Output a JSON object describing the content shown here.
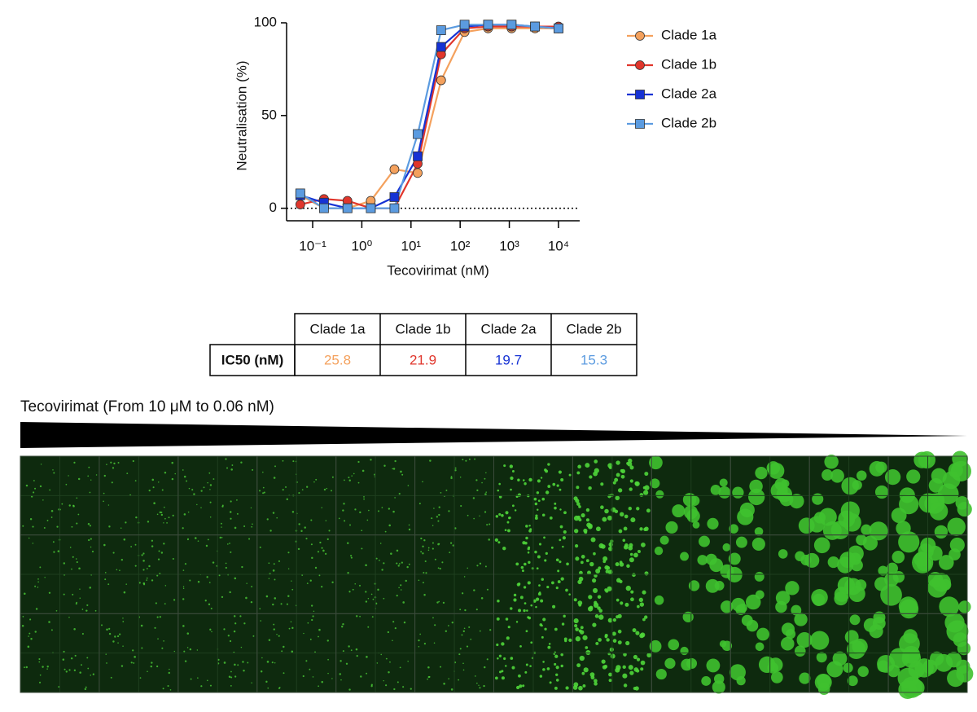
{
  "chart_data": {
    "type": "line",
    "x_label": "Tecovirimat (nM)",
    "y_label": "Neutralisation (%)",
    "xscale": "log",
    "zero_line": true,
    "x": [
      0.056,
      0.17,
      0.51,
      1.52,
      4.6,
      13.7,
      41,
      123,
      370,
      1111,
      3333,
      10000
    ],
    "xlim": [
      0.04,
      27000
    ],
    "xticks": [
      {
        "value": 0.1,
        "label": "10⁻¹"
      },
      {
        "value": 1,
        "label": "10⁰"
      },
      {
        "value": 10,
        "label": "10¹"
      },
      {
        "value": 100,
        "label": "10²"
      },
      {
        "value": 1000,
        "label": "10³"
      },
      {
        "value": 10000,
        "label": "10⁴"
      }
    ],
    "ylim": [
      -5,
      100
    ],
    "yticks": [
      0,
      50,
      100
    ],
    "series": [
      {
        "name": "Clade 1a",
        "color": "#f4a15d",
        "marker": "circle",
        "values": [
          7,
          0,
          0,
          4,
          21,
          19,
          69,
          95,
          97,
          97,
          97,
          97
        ]
      },
      {
        "name": "Clade 1b",
        "color": "#e0362c",
        "marker": "circle",
        "values": [
          2,
          5,
          4,
          0,
          0,
          24,
          83,
          97,
          98,
          98,
          98,
          98
        ]
      },
      {
        "name": "Clade 2a",
        "color": "#1632d4",
        "marker": "square",
        "values": [
          7,
          3,
          0,
          0,
          6,
          28,
          87,
          98,
          99,
          99,
          98,
          97
        ]
      },
      {
        "name": "Clade 2b",
        "color": "#5b9be0",
        "marker": "square",
        "values": [
          8,
          0,
          0,
          0,
          0,
          40,
          96,
          99,
          99,
          99,
          98,
          97
        ]
      }
    ]
  },
  "table": {
    "columns": [
      "Clade 1a",
      "Clade 1b",
      "Clade 2a",
      "Clade 2b"
    ],
    "row_label": "IC50 (nM)",
    "values": [
      "25.8",
      "21.9",
      "19.7",
      "15.3"
    ],
    "colors": [
      "#f4a15d",
      "#e0362c",
      "#1632d4",
      "#5b9be0"
    ]
  },
  "caption": "Tecovirimat (From 10 μM to 0.06 nM)"
}
